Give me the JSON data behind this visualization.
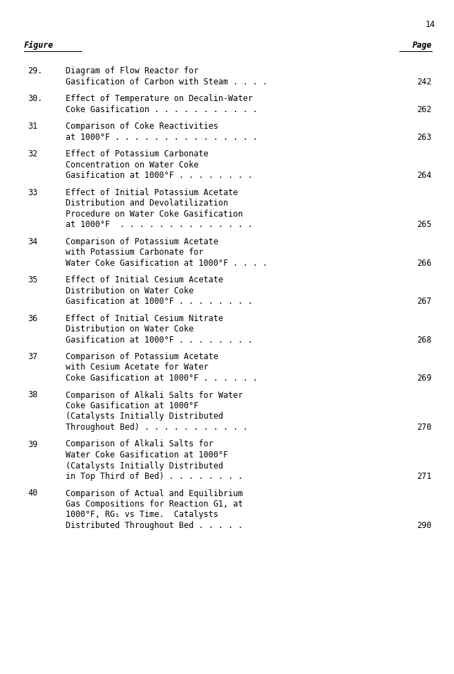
{
  "page_number": "14",
  "col1_header": "Figure",
  "col2_header": "Page",
  "background_color": "#ffffff",
  "text_color": "#000000",
  "entries": [
    {
      "figure": "29.",
      "lines": [
        "Diagram of Flow Reactor for",
        "Gasification of Carbon with Steam . . . ."
      ],
      "page": "242"
    },
    {
      "figure": "30.",
      "lines": [
        "Effect of Temperature on Decalin-Water",
        "Coke Gasification . . . . . . . . . . ."
      ],
      "page": "262"
    },
    {
      "figure": "31",
      "lines": [
        "Comparison of Coke Reactivities",
        "at 1000°F . . . . . . . . . . . . . . ."
      ],
      "page": "263"
    },
    {
      "figure": "32",
      "lines": [
        "Effect of Potassium Carbonate",
        "Concentration on Water Coke",
        "Gasification at 1000°F . . . . . . . ."
      ],
      "page": "264"
    },
    {
      "figure": "33",
      "lines": [
        "Effect of Initial Potassium Acetate",
        "Distribution and Devolatilization",
        "Procedure on Water Coke Gasification",
        "at 1000°F  . . . . . . . . . . . . . ."
      ],
      "page": "265"
    },
    {
      "figure": "34",
      "lines": [
        "Comparison of Potassium Acetate",
        "with Potassium Carbonate for",
        "Water Coke Gasification at 1000°F . . . ."
      ],
      "page": "266"
    },
    {
      "figure": "35",
      "lines": [
        "Effect of Initial Cesium Acetate",
        "Distribution on Water Coke",
        "Gasification at 1000°F . . . . . . . ."
      ],
      "page": "267"
    },
    {
      "figure": "36",
      "lines": [
        "Effect of Initial Cesium Nitrate",
        "Distribution on Water Coke",
        "Gasification at 1000°F . . . . . . . ."
      ],
      "page": "268"
    },
    {
      "figure": "37",
      "lines": [
        "Comparison of Potassium Acetate",
        "with Cesium Acetate for Water",
        "Coke Gasification at 1000°F . . . . . ."
      ],
      "page": "269"
    },
    {
      "figure": "38",
      "lines": [
        "Comparison of Alkali Salts for Water",
        "Coke Gasification at 1000°F",
        "(Catalysts Initially Distributed",
        "Throughout Bed) . . . . . . . . . . ."
      ],
      "page": "270"
    },
    {
      "figure": "39",
      "lines": [
        "Comparison of Alkali Salts for",
        "Water Coke Gasification at 1000°F",
        "(Catalysts Initially Distributed",
        "in Top Third of Bed) . . . . . . . ."
      ],
      "page": "271"
    },
    {
      "figure": "40",
      "lines": [
        "Comparison of Actual and Equilibrium",
        "Gas Compositions for Reaction G1, at",
        "1000°F, RG₁ vs Time.  Catalysts",
        "Distributed Throughout Bed . . . . ."
      ],
      "page": "290"
    }
  ]
}
